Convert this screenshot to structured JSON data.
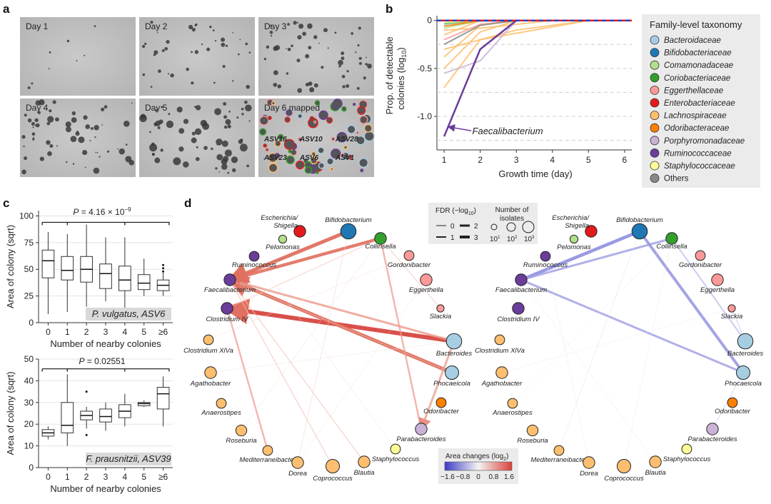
{
  "panels": {
    "a": "a",
    "b": "b",
    "c": "c",
    "d": "d"
  },
  "panel_a": {
    "tiles": [
      "Day 1",
      "Day 2",
      "Day 3",
      "Day 4",
      "Day 5",
      "Day 6 mapped"
    ],
    "asv_tags": [
      "ASV16",
      "ASV10",
      "ASV28",
      "ASV23",
      "ASV6",
      "ASV1"
    ]
  },
  "panel_b": {
    "ylabel_line1": "Prop. of detectable",
    "ylabel_line2": "colonies (log",
    "ylabel_sub": "10",
    "ylabel_close": ")",
    "xlabel": "Growth time (day)",
    "annotation": "Faecalibacterium",
    "legend_title": "Family-level taxonomy"
  },
  "chart_data": [
    {
      "type": "line",
      "panel": "b",
      "xlabel": "Growth time (day)",
      "ylabel": "Prop. of detectable colonies (log10)",
      "xlim": [
        0.8,
        6.2
      ],
      "ylim": [
        -1.35,
        0.05
      ],
      "xticks": [
        "1",
        "2",
        "3",
        "4",
        "5",
        "6"
      ],
      "yticks": [
        "0",
        "-0.5",
        "-1.0"
      ],
      "series": [
        {
          "name": "Bacteroidaceae",
          "color": "#a6cee3",
          "x": [
            1,
            2,
            3
          ],
          "y": [
            -0.05,
            -0.01,
            0
          ]
        },
        {
          "name": "Bifidobacteriaceae",
          "color": "#1f78b4",
          "x": [
            1,
            2,
            3,
            4,
            5,
            6
          ],
          "y": [
            0,
            0,
            0,
            0,
            0,
            0
          ]
        },
        {
          "name": "Comamonadaceae",
          "color": "#b2df8a",
          "x": [
            1,
            2
          ],
          "y": [
            -0.08,
            0
          ]
        },
        {
          "name": "Coriobacteriaceae",
          "color": "#33a02c",
          "x": [
            1,
            2
          ],
          "y": [
            -0.03,
            0
          ]
        },
        {
          "name": "Eggerthellaceae",
          "color": "#fb9a99",
          "x": [
            1,
            2,
            3
          ],
          "y": [
            -0.2,
            -0.04,
            0
          ]
        },
        {
          "name": "Enterobacteriaceae",
          "color": "#e31a1c",
          "x": [
            1,
            2,
            3,
            4,
            5,
            6
          ],
          "y": [
            0,
            0,
            0,
            0,
            0,
            0
          ]
        },
        {
          "name": "Lachnospiraceae",
          "color": "#fdbf6f",
          "x": [
            1,
            2,
            5
          ],
          "y": [
            -0.7,
            -0.2,
            0
          ]
        },
        {
          "name": "Lachnospiraceae",
          "color": "#fdbf6f",
          "x": [
            1,
            2,
            3
          ],
          "y": [
            -0.5,
            -0.12,
            0
          ]
        },
        {
          "name": "Lachnospiraceae",
          "color": "#fdbf6f",
          "x": [
            1,
            2,
            3
          ],
          "y": [
            -0.38,
            -0.05,
            0
          ]
        },
        {
          "name": "Lachnospiraceae",
          "color": "#fdbf6f",
          "x": [
            1,
            2,
            3,
            5
          ],
          "y": [
            -0.3,
            -0.2,
            -0.1,
            0
          ]
        },
        {
          "name": "Lachnospiraceae",
          "color": "#fdbf6f",
          "x": [
            1,
            2
          ],
          "y": [
            -0.15,
            0
          ]
        },
        {
          "name": "Lachnospiraceae",
          "color": "#fdbf6f",
          "x": [
            1,
            2,
            4
          ],
          "y": [
            -0.1,
            -0.08,
            0
          ]
        },
        {
          "name": "Odoribacteraceae",
          "color": "#ff7f00",
          "x": [
            1,
            2
          ],
          "y": [
            -0.06,
            0
          ]
        },
        {
          "name": "Porphyromonadaceae",
          "color": "#cab2d6",
          "x": [
            1,
            2,
            3
          ],
          "y": [
            -0.55,
            -0.42,
            0
          ]
        },
        {
          "name": "Ruminococcaceae",
          "color": "#6a3d9a",
          "x": [
            1,
            2,
            3
          ],
          "y": [
            -1.21,
            -0.3,
            0
          ]
        },
        {
          "name": "Staphylococcaceae",
          "color": "#ffff99",
          "x": [
            1,
            2
          ],
          "y": [
            -0.02,
            0
          ]
        },
        {
          "name": "Others",
          "color": "#888888",
          "x": [
            1,
            2,
            3
          ],
          "y": [
            -0.25,
            -0.05,
            0
          ]
        }
      ],
      "annotation": "Faecalibacterium",
      "legend": [
        {
          "label": "Bacteroidaceae",
          "color": "#a6cee3"
        },
        {
          "label": "Bifidobacteriaceae",
          "color": "#1f78b4"
        },
        {
          "label": "Comamonadaceae",
          "color": "#b2df8a"
        },
        {
          "label": "Coriobacteriaceae",
          "color": "#33a02c"
        },
        {
          "label": "Eggerthellaceae",
          "color": "#fb9a99"
        },
        {
          "label": "Enterobacteriaceae",
          "color": "#e31a1c"
        },
        {
          "label": "Lachnospiraceae",
          "color": "#fdbf6f"
        },
        {
          "label": "Odoribacteraceae",
          "color": "#ff7f00"
        },
        {
          "label": "Porphyromonadaceae",
          "color": "#cab2d6"
        },
        {
          "label": "Ruminococcaceae",
          "color": "#6a3d9a"
        },
        {
          "label": "Staphylococcaceae",
          "color": "#ffff99"
        },
        {
          "label": "Others",
          "color": "#888888"
        }
      ]
    },
    {
      "type": "box",
      "panel": "c-top",
      "title": "P. vulgatus, ASV6",
      "categories": [
        "0",
        "1",
        "2",
        "3",
        "4",
        "5",
        "≥6"
      ],
      "boxes": [
        {
          "min": 8,
          "q1": 42,
          "median": 58,
          "q3": 68,
          "max": 85
        },
        {
          "min": 10,
          "q1": 40,
          "median": 49,
          "q3": 62,
          "max": 83
        },
        {
          "min": 15,
          "q1": 38,
          "median": 50,
          "q3": 62,
          "max": 92
        },
        {
          "min": 20,
          "q1": 32,
          "median": 46,
          "q3": 55,
          "max": 80
        },
        {
          "min": 12,
          "q1": 30,
          "median": 40,
          "q3": 53,
          "max": 80
        },
        {
          "min": 25,
          "q1": 31,
          "median": 37,
          "q3": 45,
          "max": 60
        },
        {
          "min": 25,
          "q1": 30,
          "median": 35,
          "q3": 40,
          "max": 47
        }
      ],
      "outliers": [
        {
          "category": "≥6",
          "values": [
            48,
            51,
            54
          ]
        }
      ],
      "ylim": [
        0,
        105
      ],
      "yticks": [
        "0",
        "25",
        "50",
        "75",
        "100"
      ],
      "ylabel": "Area of colony (sqrt)",
      "xlabel": "Number of nearby colonies",
      "pvalue_text": "P = 4.16 × 10",
      "pvalue_exp": "−9"
    },
    {
      "type": "box",
      "panel": "c-bottom",
      "title": "F. prausnitzii, ASV39",
      "categories": [
        "0",
        "1",
        "2",
        "3",
        "4",
        "5",
        "≥6"
      ],
      "boxes": [
        {
          "min": 13,
          "q1": 14.5,
          "median": 16,
          "q3": 17.5,
          "max": 19
        },
        {
          "min": 10,
          "q1": 16,
          "median": 19.5,
          "q3": 30,
          "max": 43
        },
        {
          "min": 18,
          "q1": 22,
          "median": 24,
          "q3": 26,
          "max": 28
        },
        {
          "min": 17,
          "q1": 21,
          "median": 23.5,
          "q3": 27,
          "max": 30
        },
        {
          "min": 19,
          "q1": 23,
          "median": 26,
          "q3": 29,
          "max": 34
        },
        {
          "min": 28,
          "q1": 28.5,
          "median": 29.5,
          "q3": 30,
          "max": 31
        },
        {
          "min": 19,
          "q1": 27,
          "median": 34,
          "q3": 37,
          "max": 42
        }
      ],
      "outliers": [
        {
          "category": "2",
          "values": [
            35,
            15
          ]
        }
      ],
      "ylim": [
        0,
        50
      ],
      "yticks": [
        "0",
        "10",
        "20",
        "30",
        "40",
        "50"
      ],
      "ylabel": "Area of colony (sqrt)",
      "xlabel": "Number of nearby colonies",
      "pvalue_text": "P = 0.02551"
    },
    {
      "type": "network",
      "panel": "d",
      "nodes": [
        {
          "name": "Escherichia/",
          "name2": "Shigella",
          "color": "#e31a1c",
          "size": 2
        },
        {
          "name": "Bifidobacterium",
          "color": "#1f78b4",
          "size": 3
        },
        {
          "name": "Pelomonas",
          "color": "#b2df8a",
          "size": 1
        },
        {
          "name": "Collinsella",
          "color": "#33a02c",
          "size": 2
        },
        {
          "name": "Ruminococcus",
          "color": "#6a3d9a",
          "size": 1.5
        },
        {
          "name": "Gordonibacter",
          "color": "#fb9a99",
          "size": 1.5
        },
        {
          "name": "Faecalibacterium",
          "color": "#6a3d9a",
          "size": 2
        },
        {
          "name": "Eggerthella",
          "color": "#fb9a99",
          "size": 2
        },
        {
          "name": "Slackia",
          "color": "#fb9a99",
          "size": 0.8
        },
        {
          "name": "Clostridium IV",
          "color": "#6a3d9a",
          "size": 2
        },
        {
          "name": "Bacteroides",
          "color": "#a6cee3",
          "size": 3
        },
        {
          "name": "Clostridium XlVa",
          "color": "#fdbf6f",
          "size": 1.5
        },
        {
          "name": "Phocaeicola",
          "color": "#a6cee3",
          "size": 2.5
        },
        {
          "name": "Agathobacter",
          "color": "#fdbf6f",
          "size": 2
        },
        {
          "name": "Odoribacter",
          "color": "#ff7f00",
          "size": 1.5
        },
        {
          "name": "Anaerostipes",
          "color": "#fdbf6f",
          "size": 1.5
        },
        {
          "name": "Parabacteroides",
          "color": "#cab2d6",
          "size": 2
        },
        {
          "name": "Roseburia",
          "color": "#fdbf6f",
          "size": 1.8
        },
        {
          "name": "Staphylococcus",
          "color": "#ffff99",
          "size": 1.5
        },
        {
          "name": "Mediterraneibacter",
          "color": "#fdbf6f",
          "size": 1.5
        },
        {
          "name": "Blautia",
          "color": "#fdbf6f",
          "size": 2
        },
        {
          "name": "Dorea",
          "color": "#fdbf6f",
          "size": 2
        },
        {
          "name": "Coprococcus",
          "color": "#fdbf6f",
          "size": 2.5
        }
      ],
      "legend": {
        "fdr_title": "FDR (−log",
        "fdr_sub": "10",
        "fdr_close": ")",
        "fdr_levels": [
          "0",
          "2",
          "1",
          "3"
        ],
        "isolates_title_1": "Number of",
        "isolates_title_2": "isolates",
        "isolate_levels": [
          "10",
          "10",
          "10"
        ],
        "isolate_exps": [
          "1",
          "2",
          "3"
        ],
        "area_title": "Area changes (log",
        "area_sub": "2",
        "area_close": ")",
        "area_ticks": [
          "−1.6",
          "−0.8",
          "0",
          "0.8",
          "1.6"
        ]
      }
    }
  ]
}
